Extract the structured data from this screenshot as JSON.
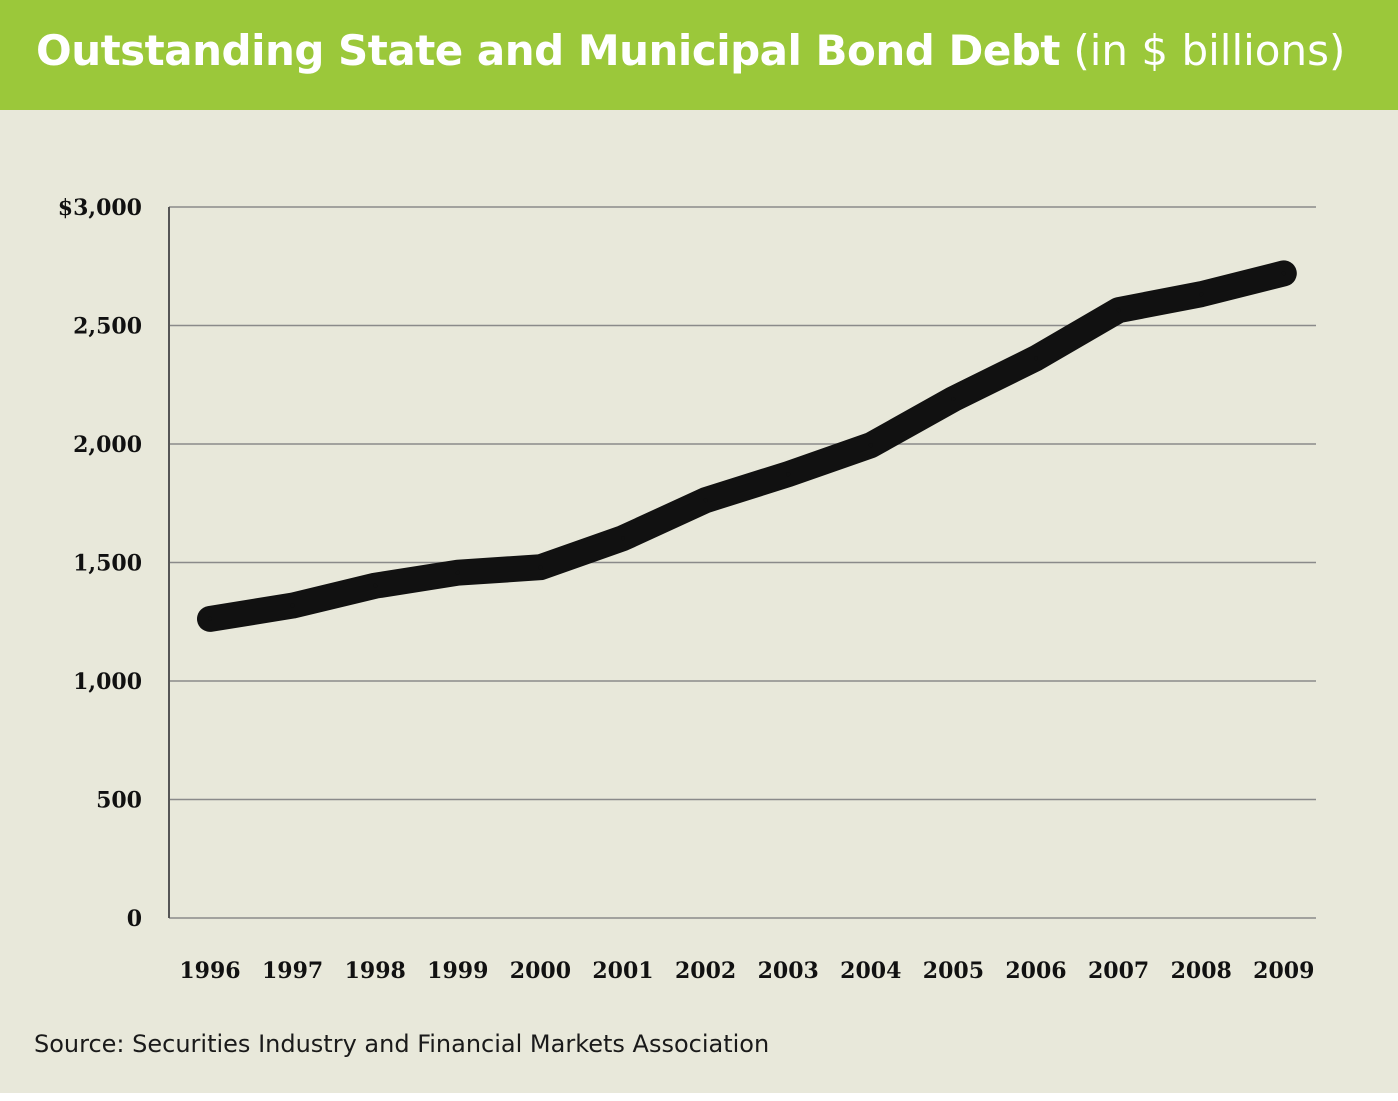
{
  "chart_data": {
    "type": "line",
    "title": "Outstanding State and Municipal Bond Debt",
    "subtitle": "(in $ billions)",
    "xlabel": "",
    "ylabel": "",
    "ylim": [
      0,
      3000
    ],
    "y_ticks": [
      0,
      500,
      1000,
      1500,
      2000,
      2500,
      3000
    ],
    "y_tick_labels": [
      "0",
      "500",
      "1,000",
      "1,500",
      "2,000",
      "2,500",
      "$3,000"
    ],
    "categories": [
      "1996",
      "1997",
      "1998",
      "1999",
      "2000",
      "2001",
      "2002",
      "2003",
      "2004",
      "2005",
      "2006",
      "2007",
      "2008",
      "2009"
    ],
    "series": [
      {
        "values": [
          1262,
          1318,
          1402,
          1457,
          1480,
          1603,
          1763,
          1873,
          1995,
          2190,
          2362,
          2565,
          2632,
          2720
        ]
      }
    ],
    "grid": "horizontal",
    "legend": "none"
  },
  "source": "Source: Securities Industry and Financial Markets Association",
  "colors": {
    "header": "#9bc83a",
    "background": "#e8e8da",
    "line": "#111111",
    "grid": "#8a8a8a"
  }
}
